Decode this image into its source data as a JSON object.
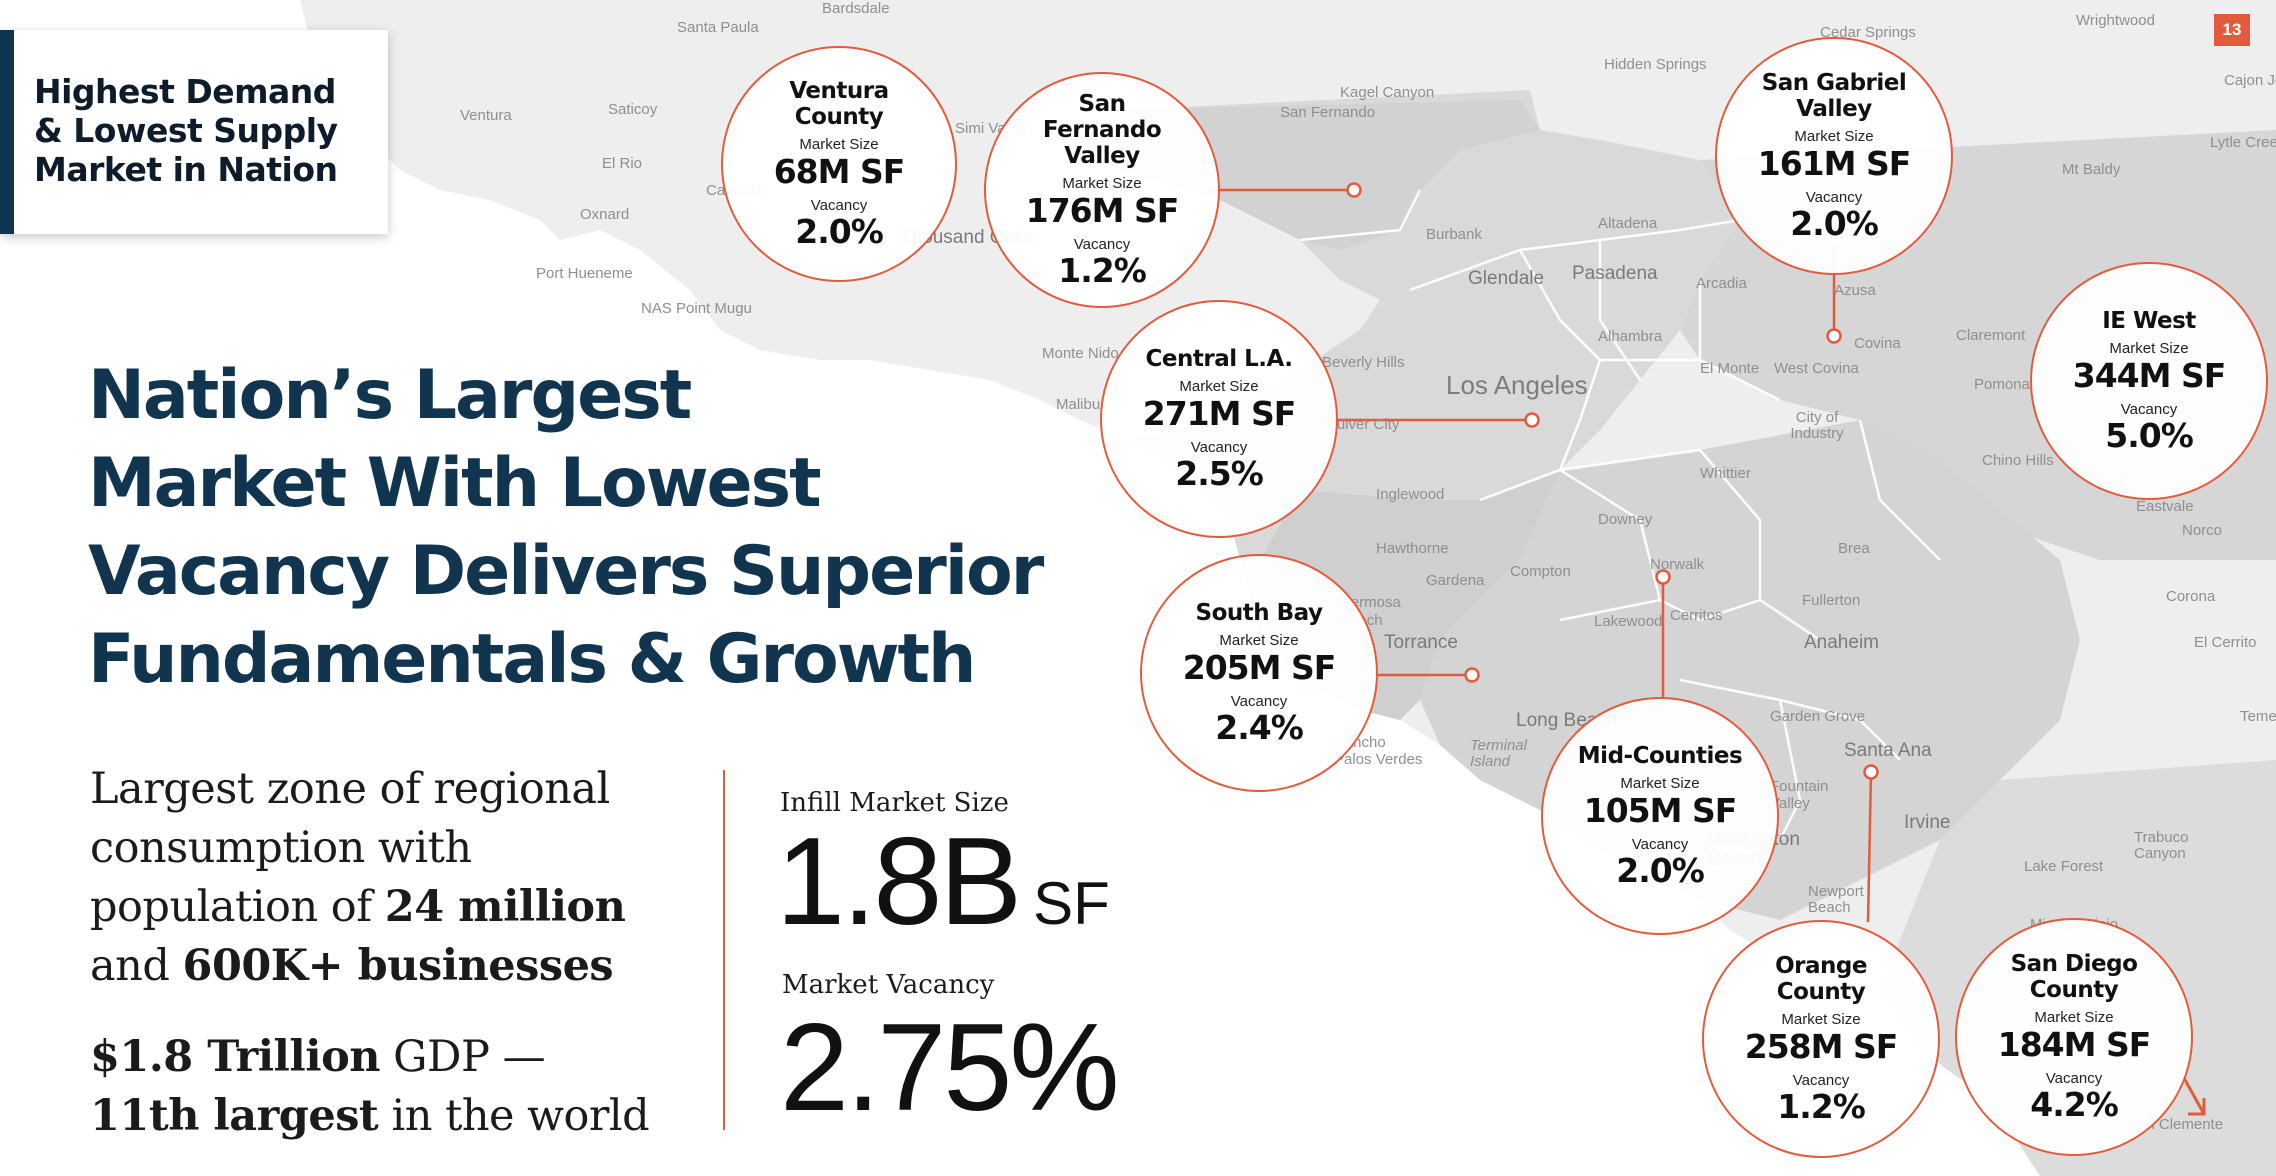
{
  "page_number": "13",
  "callout": {
    "lines": [
      "Highest Demand",
      "& Lowest Supply",
      "Market in Nation"
    ]
  },
  "headline": [
    "Nation’s Largest",
    "Market With Lowest",
    "Vacancy Delivers Superior",
    "Fundamentals & Growth"
  ],
  "body": {
    "p1_line1": "Largest zone of regional",
    "p1_line2": "consumption with",
    "p1_line3_pre": "population of ",
    "p1_line3_bold": "24 million",
    "p1_line4_pre": "and ",
    "p1_line4_bold": "600K+ businesses",
    "p2_line1_bold": "$1.8 Trillion",
    "p2_line1_post": " GDP —",
    "p2_line2_bold": "11th largest",
    "p2_line2_post": " in the world"
  },
  "stats": {
    "size_label": "Infill Market Size",
    "size_value": "1.8B",
    "size_unit": "SF",
    "vacancy_label": "Market Vacancy",
    "vacancy_value": "2.75%"
  },
  "submarket_labels": {
    "market_size": "Market Size",
    "vacancy": "Vacancy"
  },
  "submarkets": [
    {
      "name": "Ventura County",
      "size": "68M SF",
      "vacancy": "2.0%"
    },
    {
      "name": "San Fernando Valley",
      "size": "176M SF",
      "vacancy": "1.2%"
    },
    {
      "name": "San Gabriel Valley",
      "size": "161M SF",
      "vacancy": "2.0%"
    },
    {
      "name": "Central L.A.",
      "size": "271M SF",
      "vacancy": "2.5%"
    },
    {
      "name": "IE West",
      "size": "344M SF",
      "vacancy": "5.0%"
    },
    {
      "name": "South Bay",
      "size": "205M SF",
      "vacancy": "2.4%"
    },
    {
      "name": "Mid-Counties",
      "size": "105M SF",
      "vacancy": "2.0%"
    },
    {
      "name": "Orange County",
      "size": "258M SF",
      "vacancy": "1.2%"
    },
    {
      "name": "San Diego County",
      "size": "184M SF",
      "vacancy": "4.2%"
    }
  ],
  "map_places": [
    "Bardsdale",
    "Santa Paula",
    "Cedar Springs",
    "Wrightwood",
    "Ventura",
    "Saticoy",
    "Camarillo",
    "Simi Valley",
    "Kagel Canyon",
    "San Fernando",
    "Hidden Springs",
    "El Rio",
    "Oxnard",
    "Port Hueneme",
    "NAS Point Mugu",
    "Thousand Oaks",
    "Burbank",
    "Altadena",
    "Glendale",
    "Pasadena",
    "Arcadia",
    "Azusa",
    "Covina",
    "Monte Nido",
    "Beverly Hills",
    "Malibu",
    "Los Angeles",
    "Alhambra",
    "El Monte",
    "West Covina",
    "Claremont",
    "Pomona",
    "Chino Hills",
    "Culver City",
    "City of Industry",
    "Inglewood",
    "Whittier",
    "Downey",
    "Hawthorne",
    "Gardena",
    "Compton",
    "Norwalk",
    "Brea",
    "Hermosa Beach",
    "Torrance",
    "Lakewood",
    "Cerritos",
    "Fullerton",
    "Anaheim",
    "Rancho Palos Verdes",
    "Terminal Island",
    "Long Beach",
    "Garden Grove",
    "Santa Ana",
    "Fountain Valley",
    "Huntington Beach",
    "Irvine",
    "Newport Beach",
    "Lake Forest",
    "Mt Baldy",
    "Lytle Creek",
    "Cajon Jct",
    "Eastvale",
    "Norco",
    "Corona",
    "El Cerrito",
    "Temescal",
    "Trabuco Canyon",
    "Mission Viejo",
    "San Clemente"
  ]
}
